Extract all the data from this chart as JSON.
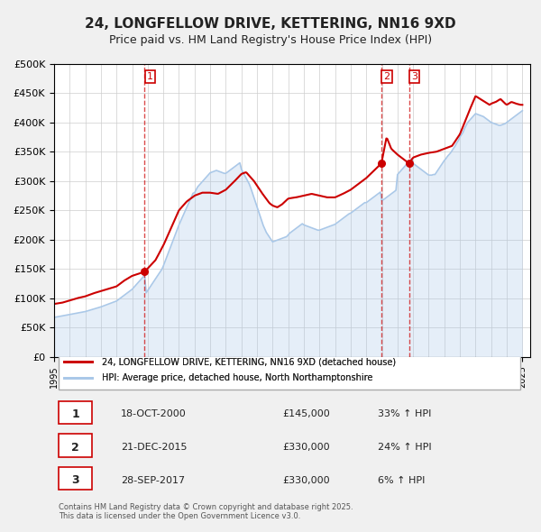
{
  "title": "24, LONGFELLOW DRIVE, KETTERING, NN16 9XD",
  "subtitle": "Price paid vs. HM Land Registry's House Price Index (HPI)",
  "bg_color": "#f0f0f0",
  "chart_bg_color": "#ffffff",
  "grid_color": "#cccccc",
  "sale_color": "#cc0000",
  "hpi_color": "#aac8e8",
  "sale_marker_color": "#cc0000",
  "legend_sale_label": "24, LONGFELLOW DRIVE, KETTERING, NN16 9XD (detached house)",
  "legend_hpi_label": "HPI: Average price, detached house, North Northamptonshire",
  "xlabel": "",
  "ylabel": "",
  "ylim": [
    0,
    500000
  ],
  "ytick_step": 50000,
  "xmin": 1995,
  "xmax": 2025.5,
  "footnote": "Contains HM Land Registry data © Crown copyright and database right 2025.\nThis data is licensed under the Open Government Licence v3.0.",
  "sales": [
    {
      "date": 2000.8,
      "price": 145000,
      "label": "1"
    },
    {
      "date": 2015.97,
      "price": 330000,
      "label": "2"
    },
    {
      "date": 2017.74,
      "price": 330000,
      "label": "3"
    }
  ],
  "vlines": [
    2000.8,
    2015.97,
    2017.74
  ],
  "table_rows": [
    {
      "num": "1",
      "date": "18-OCT-2000",
      "price": "£145,000",
      "change": "33% ↑ HPI"
    },
    {
      "num": "2",
      "date": "21-DEC-2015",
      "price": "£330,000",
      "change": "24% ↑ HPI"
    },
    {
      "num": "3",
      "date": "28-SEP-2017",
      "price": "£330,000",
      "change": "6% ↑ HPI"
    }
  ],
  "hpi_x": [
    1995.0,
    1995.1,
    1995.2,
    1995.3,
    1995.4,
    1995.5,
    1995.6,
    1995.7,
    1995.8,
    1995.9,
    1996.0,
    1996.1,
    1996.2,
    1996.3,
    1996.4,
    1996.5,
    1996.6,
    1996.7,
    1996.8,
    1996.9,
    1997.0,
    1997.1,
    1997.2,
    1997.3,
    1997.4,
    1997.5,
    1997.6,
    1997.7,
    1997.8,
    1997.9,
    1998.0,
    1998.1,
    1998.2,
    1998.3,
    1998.4,
    1998.5,
    1998.6,
    1998.7,
    1998.8,
    1998.9,
    1999.0,
    1999.1,
    1999.2,
    1999.3,
    1999.4,
    1999.5,
    1999.6,
    1999.7,
    1999.8,
    1999.9,
    2000.0,
    2000.1,
    2000.2,
    2000.3,
    2000.4,
    2000.5,
    2000.6,
    2000.7,
    2000.8,
    2000.9,
    2001.0,
    2001.1,
    2001.2,
    2001.3,
    2001.4,
    2001.5,
    2001.6,
    2001.7,
    2001.8,
    2001.9,
    2002.0,
    2002.1,
    2002.2,
    2002.3,
    2002.4,
    2002.5,
    2002.6,
    2002.7,
    2002.8,
    2002.9,
    2003.0,
    2003.1,
    2003.2,
    2003.3,
    2003.4,
    2003.5,
    2003.6,
    2003.7,
    2003.8,
    2003.9,
    2004.0,
    2004.1,
    2004.2,
    2004.3,
    2004.4,
    2004.5,
    2004.6,
    2004.7,
    2004.8,
    2004.9,
    2005.0,
    2005.1,
    2005.2,
    2005.3,
    2005.4,
    2005.5,
    2005.6,
    2005.7,
    2005.8,
    2005.9,
    2006.0,
    2006.1,
    2006.2,
    2006.3,
    2006.4,
    2006.5,
    2006.6,
    2006.7,
    2006.8,
    2006.9,
    2007.0,
    2007.1,
    2007.2,
    2007.3,
    2007.4,
    2007.5,
    2007.6,
    2007.7,
    2007.8,
    2007.9,
    2008.0,
    2008.1,
    2008.2,
    2008.3,
    2008.4,
    2008.5,
    2008.6,
    2008.7,
    2008.8,
    2008.9,
    2009.0,
    2009.1,
    2009.2,
    2009.3,
    2009.4,
    2009.5,
    2009.6,
    2009.7,
    2009.8,
    2009.9,
    2010.0,
    2010.1,
    2010.2,
    2010.3,
    2010.4,
    2010.5,
    2010.6,
    2010.7,
    2010.8,
    2010.9,
    2011.0,
    2011.1,
    2011.2,
    2011.3,
    2011.4,
    2011.5,
    2011.6,
    2011.7,
    2011.8,
    2011.9,
    2012.0,
    2012.1,
    2012.2,
    2012.3,
    2012.4,
    2012.5,
    2012.6,
    2012.7,
    2012.8,
    2012.9,
    2013.0,
    2013.1,
    2013.2,
    2013.3,
    2013.4,
    2013.5,
    2013.6,
    2013.7,
    2013.8,
    2013.9,
    2014.0,
    2014.1,
    2014.2,
    2014.3,
    2014.4,
    2014.5,
    2014.6,
    2014.7,
    2014.8,
    2014.9,
    2015.0,
    2015.1,
    2015.2,
    2015.3,
    2015.4,
    2015.5,
    2015.6,
    2015.7,
    2015.8,
    2015.9,
    2016.0,
    2016.1,
    2016.2,
    2016.3,
    2016.4,
    2016.5,
    2016.6,
    2016.7,
    2016.8,
    2016.9,
    2017.0,
    2017.1,
    2017.2,
    2017.3,
    2017.4,
    2017.5,
    2017.6,
    2017.7,
    2017.8,
    2017.9,
    2018.0,
    2018.1,
    2018.2,
    2018.3,
    2018.4,
    2018.5,
    2018.6,
    2018.7,
    2018.8,
    2018.9,
    2019.0,
    2019.1,
    2019.2,
    2019.3,
    2019.4,
    2019.5,
    2019.6,
    2019.7,
    2019.8,
    2019.9,
    2020.0,
    2020.1,
    2020.2,
    2020.3,
    2020.4,
    2020.5,
    2020.6,
    2020.7,
    2020.8,
    2020.9,
    2021.0,
    2021.1,
    2021.2,
    2021.3,
    2021.4,
    2021.5,
    2021.6,
    2021.7,
    2021.8,
    2021.9,
    2022.0,
    2022.1,
    2022.2,
    2022.3,
    2022.4,
    2022.5,
    2022.6,
    2022.7,
    2022.8,
    2022.9,
    2023.0,
    2023.1,
    2023.2,
    2023.3,
    2023.4,
    2023.5,
    2023.6,
    2023.7,
    2023.8,
    2023.9,
    2024.0,
    2024.1,
    2024.2,
    2024.3,
    2024.4,
    2024.5,
    2024.6,
    2024.7,
    2024.8,
    2024.9,
    2025.0
  ],
  "hpi_y": [
    67000,
    67500,
    68000,
    68500,
    69000,
    69500,
    70000,
    70500,
    71000,
    71500,
    72000,
    72500,
    73000,
    73500,
    74000,
    74500,
    75000,
    75500,
    76000,
    76500,
    77000,
    77800,
    78600,
    79400,
    80200,
    81000,
    81800,
    82600,
    83400,
    84200,
    85000,
    86000,
    87000,
    88000,
    89000,
    90000,
    91000,
    92000,
    93000,
    94000,
    95000,
    97000,
    99000,
    101000,
    103000,
    105000,
    107000,
    109000,
    111000,
    113000,
    115000,
    118000,
    121000,
    124000,
    127000,
    130000,
    133000,
    136000,
    139000,
    109000,
    113000,
    117000,
    121000,
    125000,
    129000,
    133000,
    137000,
    141000,
    145000,
    149000,
    155000,
    162000,
    169000,
    176000,
    183000,
    190000,
    197000,
    204000,
    211000,
    218000,
    225000,
    231000,
    237000,
    243000,
    249000,
    255000,
    261000,
    267000,
    273000,
    279000,
    280000,
    285000,
    290000,
    293000,
    296000,
    299000,
    302000,
    305000,
    308000,
    311000,
    314000,
    315000,
    316000,
    317000,
    318000,
    317000,
    316000,
    315000,
    314000,
    313000,
    313000,
    315000,
    317000,
    319000,
    321000,
    323000,
    325000,
    327000,
    329000,
    331000,
    320000,
    315000,
    310000,
    305000,
    300000,
    295000,
    288000,
    280000,
    272000,
    264000,
    256000,
    248000,
    240000,
    232000,
    224000,
    218000,
    212000,
    208000,
    204000,
    200000,
    196000,
    197000,
    198000,
    199000,
    200000,
    201000,
    202000,
    203000,
    204000,
    205000,
    208000,
    211000,
    213000,
    215000,
    217000,
    219000,
    221000,
    223000,
    225000,
    227000,
    225000,
    224000,
    223000,
    222000,
    221000,
    220000,
    219000,
    218000,
    217000,
    216000,
    216000,
    217000,
    218000,
    219000,
    220000,
    221000,
    222000,
    223000,
    224000,
    225000,
    226000,
    228000,
    230000,
    232000,
    234000,
    236000,
    238000,
    240000,
    242000,
    244000,
    245000,
    247000,
    249000,
    251000,
    253000,
    255000,
    257000,
    259000,
    261000,
    263000,
    263000,
    265000,
    267000,
    269000,
    271000,
    273000,
    275000,
    277000,
    279000,
    281000,
    266000,
    268000,
    270000,
    272000,
    274000,
    276000,
    278000,
    280000,
    282000,
    284000,
    311000,
    314000,
    317000,
    320000,
    323000,
    326000,
    329000,
    332000,
    335000,
    338000,
    330000,
    328000,
    326000,
    324000,
    322000,
    320000,
    318000,
    316000,
    314000,
    312000,
    310000,
    310000,
    310000,
    311000,
    311000,
    315000,
    319000,
    323000,
    327000,
    331000,
    335000,
    338000,
    342000,
    345000,
    348000,
    352000,
    356000,
    360000,
    365000,
    369000,
    375000,
    379000,
    383000,
    390000,
    395000,
    400000,
    403000,
    406000,
    409000,
    412000,
    415000,
    414000,
    413000,
    412000,
    411000,
    410000,
    408000,
    406000,
    404000,
    402000,
    400000,
    399000,
    398000,
    397000,
    396000,
    395000,
    395000,
    396000,
    397000,
    398000,
    400000,
    402000,
    404000,
    406000,
    408000,
    410000,
    412000,
    414000,
    416000,
    418000,
    420000
  ],
  "sale_x": [
    1995.1,
    1996.0,
    1997.0,
    1998.0,
    1998.5,
    1999.0,
    2000.0,
    2000.8,
    2015.97,
    2017.74
  ],
  "sale_y": [
    90000,
    95000,
    100000,
    108000,
    113000,
    118000,
    138000,
    145000,
    330000,
    330000
  ]
}
